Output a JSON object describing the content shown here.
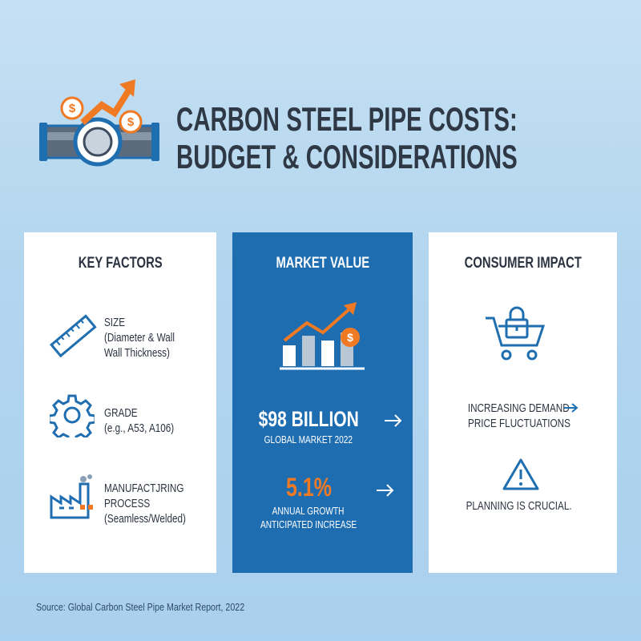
{
  "header": {
    "title": [
      "CARBON STEEL PIPE COSTS:",
      "BUDGET & CONSIDERATIONS"
    ]
  },
  "key_factors": {
    "heading": "KEY FACTORS",
    "items": [
      {
        "label": [
          "SIZE"
        ],
        "detail": [
          "(Diameter & Wall",
          "Wall Thickness)"
        ]
      },
      {
        "label": [
          "GRADE"
        ],
        "detail": [
          "(e.g., A53, A106)"
        ]
      },
      {
        "label": [
          "MANUFACTJRING",
          "PROCESS"
        ],
        "detail": [
          "(Seamless/Welded)"
        ]
      }
    ]
  },
  "market_value": {
    "heading": "MARKET VALUE",
    "stats": [
      {
        "value": "$98 BILLION",
        "caption": [
          "GLOBAL MARKET 2022"
        ]
      },
      {
        "value": "5.1%",
        "caption": [
          "ANNUAL GROWTH",
          "ANTICIPATED INCREASE"
        ]
      }
    ]
  },
  "consumer_impact": {
    "heading": "CONSUMER IMPACT",
    "items": [
      {
        "lines": [
          "INCREASING DEMAND",
          "PRICE FLUCTUATIONS"
        ]
      },
      {
        "lines": [
          "PLANNING IS CRUCIAL."
        ]
      }
    ]
  },
  "source": "Source: Global Carbon Steel Pipe Market Report, 2022"
}
